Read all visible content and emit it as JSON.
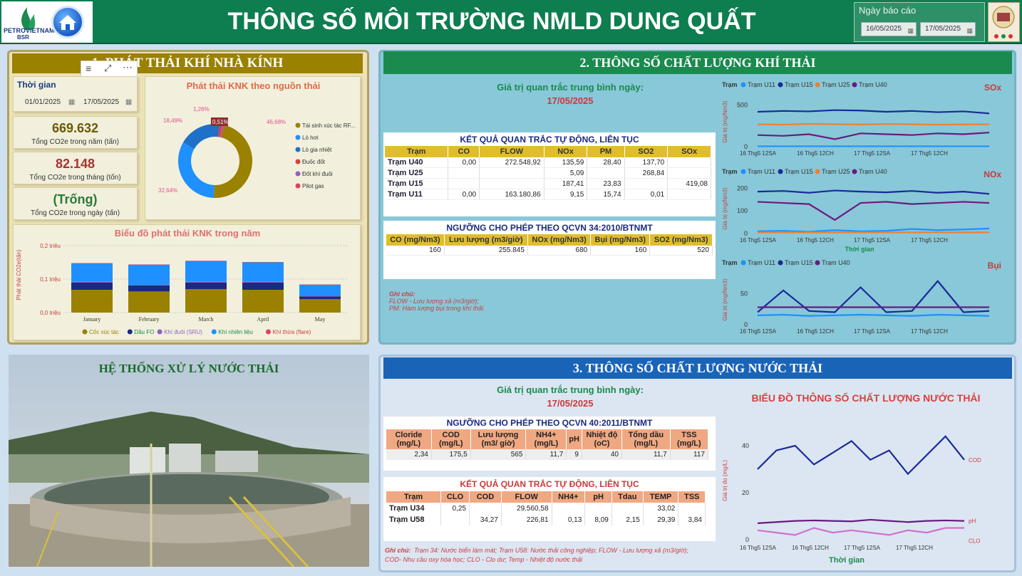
{
  "header": {
    "title": "THÔNG SỐ MÔI TRƯỜNG NMLD DUNG QUẤT",
    "logo_text": "PETROVIETNAM",
    "logo_sub": "BSR",
    "report_date_label": "Ngày báo cáo",
    "date_from": "16/05/2025",
    "date_to": "17/05/2025"
  },
  "ghg": {
    "title": "1. PHÁT THẢI KHÍ NHÀ KÍNH",
    "time_label": "Thời gian",
    "date_from": "01/01/2025",
    "date_to": "17/05/2025",
    "kpis": [
      {
        "value": "669.632",
        "label": "Tổng CO2e trong năm (tấn)",
        "color": "#6b5a00"
      },
      {
        "value": "82.148",
        "label": "Tổng CO2e trong tháng (tốn)",
        "color": "#a83232"
      },
      {
        "value": "(Trống)",
        "label": "Tổng CO2e trong ngày (tấn)",
        "color": "#2a7a3a"
      }
    ],
    "donut_title": "Phát thải KNK theo nguồn thải",
    "donut_labels": [
      "46,68%",
      "32,64%",
      "18,49%",
      "1,26%",
      "0,51%"
    ],
    "donut_legend": [
      {
        "label": "Tái sinh xúc tác RF...",
        "color": "#9a8100"
      },
      {
        "label": "Lò hơi",
        "color": "#1e90ff"
      },
      {
        "label": "Lò gia nhiệt",
        "color": "#1e70c8"
      },
      {
        "label": "Đuốc đốt",
        "color": "#d84040"
      },
      {
        "label": "Đốt khí đuôi",
        "color": "#9060c0"
      },
      {
        "label": "Pilot gas",
        "color": "#e04060"
      }
    ],
    "bar_title": "Biểu đồ phát thải KNK trong năm"
  },
  "chart_data": [
    {
      "type": "pie",
      "title": "Phát thải KNK theo nguồn thải",
      "categories": [
        "Tái sinh xúc tác RF...",
        "Lò hơi",
        "Lò gia nhiệt",
        "Đuốc đốt",
        "Đốt khí đuôi",
        "Pilot gas"
      ],
      "values": [
        46.68,
        32.64,
        18.49,
        1.26,
        0.51,
        0.42
      ]
    },
    {
      "type": "bar",
      "title": "Biểu đồ phát thải KNK trong năm",
      "ylabel": "Phát thải CO2e(tấn)",
      "yticks": [
        "0,0 triệu",
        "0,1 triệu",
        "0,2 triệu"
      ],
      "ylim": [
        0,
        0.2
      ],
      "categories": [
        "January",
        "February",
        "March",
        "April",
        "May"
      ],
      "series": [
        {
          "name": "Cốc xúc tác",
          "color": "#9a8100",
          "values": [
            0.068,
            0.063,
            0.07,
            0.068,
            0.04
          ]
        },
        {
          "name": "Dầu FO",
          "color": "#1a2a80",
          "values": [
            0.022,
            0.018,
            0.02,
            0.022,
            0.008
          ]
        },
        {
          "name": "Khí đuôi (SRU)",
          "color": "#9060c0",
          "values": [
            0.002,
            0.002,
            0.002,
            0.002,
            0.002
          ]
        },
        {
          "name": "Khí nhiên liệu",
          "color": "#1e90ff",
          "values": [
            0.055,
            0.06,
            0.062,
            0.058,
            0.033
          ]
        },
        {
          "name": "Khí thừa (flare)",
          "color": "#e04060",
          "values": [
            0.001,
            0.001,
            0.001,
            0.001,
            0.001
          ]
        }
      ]
    },
    {
      "type": "line",
      "title": "SOx",
      "ylabel": "Giá trị (mg/Nm3)",
      "xticks": [
        "16 Thg5 12SA",
        "16 Thg5 12CH",
        "17 Thg5 12SA",
        "17 Thg5 12CH"
      ],
      "yticks": [
        0,
        500
      ],
      "ylim": [
        0,
        600
      ],
      "series": [
        {
          "name": "Trạm U11",
          "color": "#1e90ff",
          "values": [
            5,
            5,
            5,
            5,
            5,
            5,
            5,
            5,
            5,
            5
          ]
        },
        {
          "name": "Trạm U15",
          "color": "#1a2a98",
          "values": [
            420,
            430,
            425,
            440,
            435,
            420,
            430,
            415,
            425,
            400
          ]
        },
        {
          "name": "Trạm U25",
          "color": "#f08030",
          "values": [
            270,
            265,
            275,
            270,
            268,
            272,
            270,
            265,
            268,
            270
          ]
        },
        {
          "name": "Trạm U40",
          "color": "#6a1a80",
          "values": [
            140,
            130,
            150,
            90,
            160,
            150,
            140,
            160,
            150,
            170
          ]
        }
      ]
    },
    {
      "type": "line",
      "title": "NOx",
      "ylabel": "Giá trị (mg/Nm3)",
      "xticks": [
        "16 Thg5 12SA",
        "16 Thg5 12CH",
        "17 Thg5 12SA",
        "17 Thg5 12CH"
      ],
      "yticks": [
        0,
        100,
        200
      ],
      "ylim": [
        0,
        220
      ],
      "series": [
        {
          "name": "Trạm U11",
          "color": "#1e90ff",
          "values": [
            10,
            12,
            8,
            15,
            10,
            12,
            20,
            15,
            18,
            22
          ]
        },
        {
          "name": "Trạm U15",
          "color": "#1a2a98",
          "values": [
            185,
            188,
            180,
            190,
            185,
            182,
            188,
            180,
            185,
            175
          ]
        },
        {
          "name": "Trạm U25",
          "color": "#f08030",
          "values": [
            5,
            5,
            5,
            5,
            5,
            5,
            5,
            5,
            5,
            5
          ]
        },
        {
          "name": "Trạm U40",
          "color": "#6a1a80",
          "values": [
            140,
            135,
            130,
            60,
            135,
            140,
            130,
            135,
            140,
            135
          ]
        }
      ]
    },
    {
      "type": "line",
      "title": "Bụi",
      "ylabel": "Giá trị (mg/Nm3)",
      "xticks": [
        "16 Thg5 12SA",
        "16 Thg5 12CH",
        "17 Thg5 12SA",
        "17 Thg5 12CH"
      ],
      "yticks": [
        0,
        50
      ],
      "ylim": [
        0,
        80
      ],
      "series": [
        {
          "name": "Trạm U11",
          "color": "#1e90ff",
          "values": [
            15,
            16,
            14,
            15,
            16,
            15,
            14,
            16,
            15,
            14
          ]
        },
        {
          "name": "Trạm U15",
          "color": "#1a2a98",
          "values": [
            20,
            55,
            22,
            20,
            60,
            20,
            22,
            70,
            20,
            22
          ]
        },
        {
          "name": "Trạm U40",
          "color": "#6a1a80",
          "values": [
            28,
            28,
            28,
            28,
            28,
            28,
            28,
            28,
            28,
            28
          ]
        }
      ]
    },
    {
      "type": "line",
      "title": "BIỂU ĐỒ THÔNG SỐ CHẤT LƯỢNG NƯỚC THẢI",
      "ylabel": "Giá trị đo (mg/L)",
      "xlabel": "Thời gian",
      "xticks": [
        "16 Thg5 12SA",
        "16 Thg5 12CH",
        "17 Thg5 12SA",
        "17 Thg5 12CH"
      ],
      "yticks": [
        0,
        20,
        40
      ],
      "ylim": [
        0,
        50
      ],
      "series": [
        {
          "name": "COD",
          "color": "#1a2a98",
          "values": [
            30,
            38,
            40,
            32,
            37,
            42,
            34,
            38,
            28,
            36,
            44,
            34
          ]
        },
        {
          "name": "pH",
          "color": "#6a1a80",
          "values": [
            7,
            7.5,
            8,
            8.2,
            8,
            7.8,
            8.5,
            8,
            7.5,
            8,
            8.2,
            8
          ]
        },
        {
          "name": "CLO",
          "color": "#d070d0",
          "values": [
            4,
            3,
            2,
            5,
            3,
            4,
            3,
            2,
            4,
            3,
            5,
            5
          ]
        }
      ]
    }
  ],
  "air": {
    "title": "2. THÔNG SỐ CHẤT LƯỢNG KHÍ THẢI",
    "avg_label": "Giá trị quan trắc trung bình ngày:",
    "avg_date": "17/05/2025",
    "auto_title": "KẾT QUẢ QUAN TRẮC TỰ ĐỘNG, LIÊN TỤC",
    "auto_headers": [
      "Trạm",
      "CO",
      "FLOW",
      "NOx",
      "PM",
      "SO2",
      "SOx"
    ],
    "auto_rows": [
      [
        "Trạm U40",
        "0,00",
        "272.548,92",
        "135,59",
        "28,40",
        "137,70",
        ""
      ],
      [
        "Trạm U25",
        "",
        "",
        "5,09",
        "",
        "268,84",
        ""
      ],
      [
        "Trạm U15",
        "",
        "",
        "187,41",
        "23,83",
        "",
        "419,08"
      ],
      [
        "Trạm U11",
        "0,00",
        "163.180,86",
        "9,15",
        "15,74",
        "0,01",
        ""
      ]
    ],
    "limit_title": "NGƯỠNG CHO PHÉP THEO QCVN 34:2010/BTNMT",
    "limit_headers": [
      "CO (mg/Nm3)",
      "Lưu lượng (m3/giờ)",
      "NOx (mg/Nm3)",
      "Bụi (mg/Nm3)",
      "SO2 (mg/Nm3)"
    ],
    "limit_values": [
      "160",
      "255.845",
      "680",
      "160",
      "520"
    ],
    "note_title": "Ghi chú:",
    "note_lines": [
      "FLOW - Lưu lượng xả (m3/giờ);",
      "PM: Hàm lượng bụi trong khí thải"
    ],
    "legend_title": "Trạm",
    "sox_label": "SOx",
    "nox_label": "NOx",
    "dust_label": "Bụi",
    "x_label": "Thời gian"
  },
  "water": {
    "photo_title": "HỆ THỐNG XỬ LÝ NƯỚC THẢI",
    "title": "3. THÔNG SỐ CHẤT LƯỢNG NƯỚC THẢI",
    "avg_label": "Giá trị quan trắc trung bình ngày:",
    "avg_date": "17/05/2025",
    "limit_title": "NGƯỠNG CHO PHÉP THEO QCVN 40:2011/BTNMT",
    "limit_headers": [
      "Cloride (mg/L)",
      "COD (mg/L)",
      "Lưu lượng (m3/ giờ)",
      "NH4+ (mg/L)",
      "pH",
      "Nhiệt độ (oC)",
      "Tổng dầu (mg/L)",
      "TSS (mg/L)"
    ],
    "limit_values": [
      "2,34",
      "175,5",
      "565",
      "11,7",
      "9",
      "40",
      "11,7",
      "117"
    ],
    "auto_title": "KẾT QUẢ QUAN TRẮC TỰ ĐỘNG, LIÊN TỤC",
    "auto_headers": [
      "Trạm",
      "CLO",
      "COD",
      "FLOW",
      "NH4+",
      "pH",
      "Tdau",
      "TEMP",
      "TSS"
    ],
    "auto_rows": [
      [
        "Trạm U34",
        "0,25",
        "",
        "29.560,58",
        "",
        "",
        "",
        "33,02",
        ""
      ],
      [
        "Trạm U58",
        "",
        "34,27",
        "226,81",
        "0,13",
        "8,09",
        "2,15",
        "29,39",
        "3,84"
      ]
    ],
    "note_title": "Ghi chú:",
    "note_text": "Trạm 34: Nước biển làm mát; Trạm U58: Nước thải công nghiệp; FLOW - Lưu lượng xả (m3/giờ);",
    "note_text2": "COD- Nhu cầu oxy hóa học; CLO - Clo dư; Temp - Nhiệt độ nước thải",
    "chart_title": "BIỂU ĐỒ THÔNG SỐ CHẤT LƯỢNG NƯỚC THẢI",
    "x_label": "Thời gian"
  }
}
